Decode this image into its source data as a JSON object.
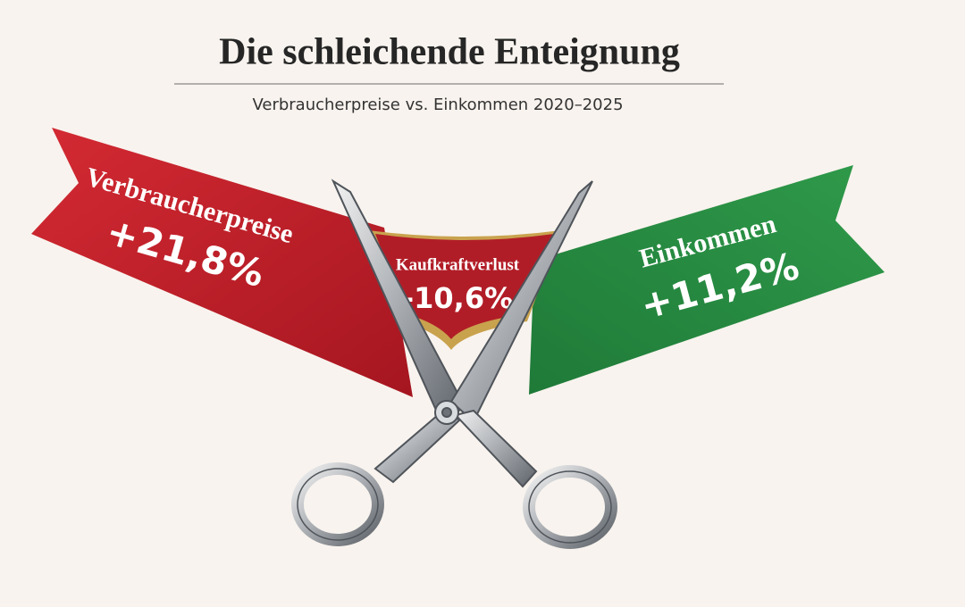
{
  "header": {
    "title": "Die schleichende Enteignung",
    "subtitle": "Verbraucherpreise vs. Einkommen 2020–2025"
  },
  "ribbons": [
    {
      "label": "Verbraucherpreise",
      "value": "+21,8%"
    },
    {
      "label": "Kaufkraftverlust",
      "value": "-10,6%"
    },
    {
      "label": "Einkommen",
      "value": "+11,2%"
    }
  ]
}
